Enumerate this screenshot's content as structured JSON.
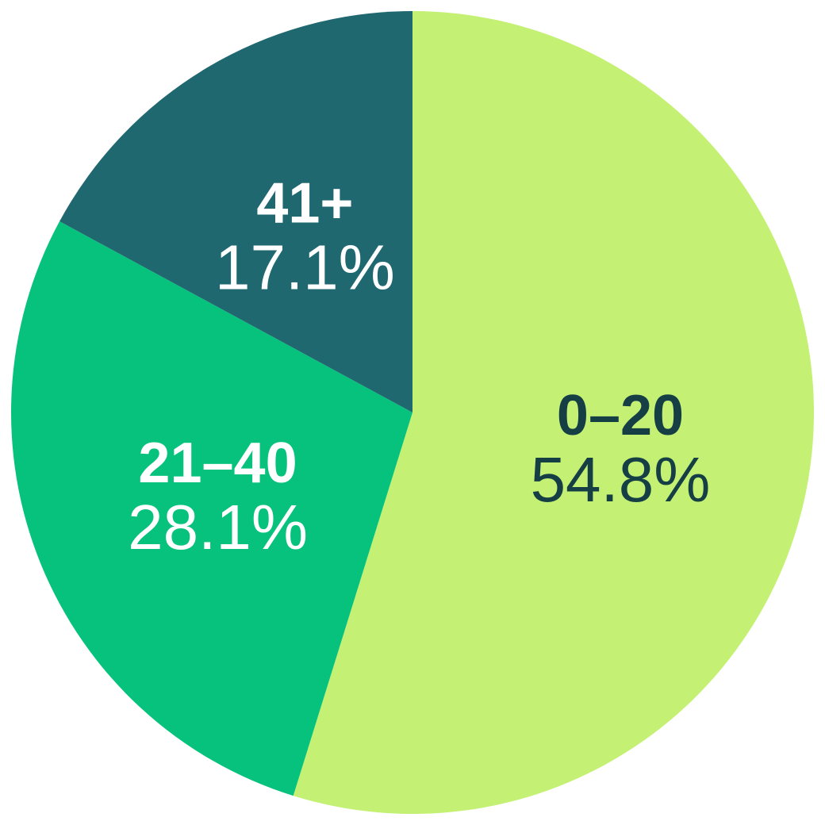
{
  "chart_data": {
    "type": "pie",
    "categories": [
      "0–20",
      "21–40",
      "41+"
    ],
    "values": [
      54.8,
      28.1,
      17.1
    ],
    "value_labels": [
      "54.8%",
      "28.1%",
      "17.1%"
    ],
    "colors": [
      "#c4f074",
      "#06c27c",
      "#1f6870"
    ],
    "label_colors": [
      "#153f45",
      "#ffffff",
      "#ffffff"
    ]
  }
}
